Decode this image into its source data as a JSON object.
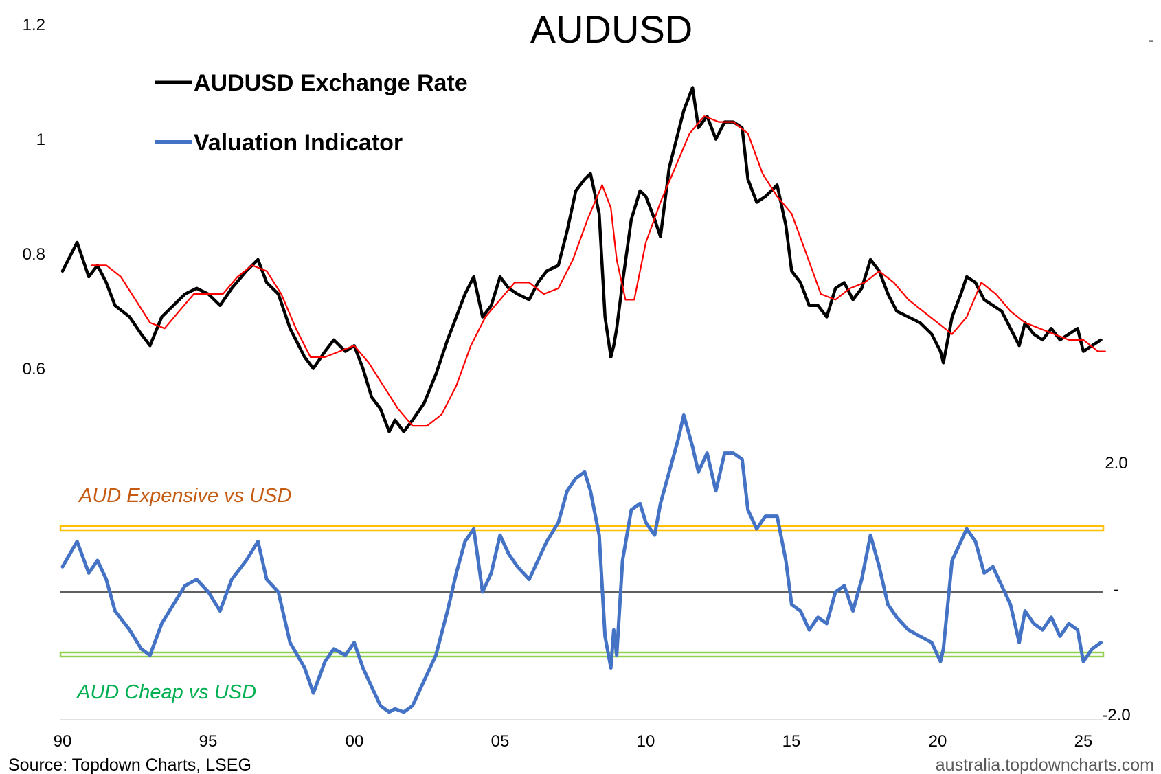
{
  "chart_data": {
    "type": "line",
    "title": "AUDUSD",
    "footer": {
      "source": "Source: Topdown Charts, LSEG",
      "website": "australia.topdowncharts.com"
    },
    "x_axis": {
      "range": [
        1990,
        2025.75
      ],
      "ticks": [
        {
          "value": 1990,
          "label": "90"
        },
        {
          "value": 1995,
          "label": "95"
        },
        {
          "value": 2000,
          "label": "00"
        },
        {
          "value": 2005,
          "label": "05"
        },
        {
          "value": 2010,
          "label": "10"
        },
        {
          "value": 2015,
          "label": "15"
        },
        {
          "value": 2020,
          "label": "20"
        },
        {
          "value": 2025,
          "label": "25"
        }
      ]
    },
    "left_axis": {
      "range": [
        0.43,
        1.2
      ],
      "ticks": [
        {
          "value": 1.2,
          "label": "1.2"
        },
        {
          "value": 1.0,
          "label": "1"
        },
        {
          "value": 0.8,
          "label": "0.8"
        },
        {
          "value": 0.6,
          "label": "0.6"
        }
      ]
    },
    "right_axis": {
      "range": [
        -2.0,
        2.0
      ],
      "ticks": [
        {
          "value": 2.0,
          "label": "2.0"
        },
        {
          "value": 0.0,
          "label": "-"
        },
        {
          "value": -2.0,
          "label": "-2.0"
        }
      ]
    },
    "legend": [
      {
        "label": "AUDUSD Exchange Rate",
        "color": "#000000"
      },
      {
        "label": "Valuation Indicator",
        "color": "#4472C4"
      }
    ],
    "thresholds": [
      {
        "label": "AUD Expensive vs USD",
        "value": 1.0,
        "color": "#FFC000",
        "label_color": "#C55A11"
      },
      {
        "label": "AUD Cheap vs USD",
        "value": -1.0,
        "color": "#92D050",
        "label_color": "#00B050"
      }
    ],
    "series": [
      {
        "name": "AUDUSD Exchange Rate",
        "axis": "left",
        "color": "#000000",
        "x": [
          1990.0,
          1990.5,
          1990.9,
          1991.2,
          1991.5,
          1991.8,
          1992.3,
          1992.7,
          1993.0,
          1993.4,
          1993.8,
          1994.2,
          1994.6,
          1995.0,
          1995.4,
          1995.8,
          1996.3,
          1996.7,
          1997.0,
          1997.4,
          1997.8,
          1998.3,
          1998.6,
          1999.0,
          1999.3,
          1999.7,
          2000.0,
          2000.3,
          2000.6,
          2000.9,
          2001.2,
          2001.4,
          2001.7,
          2002.0,
          2002.4,
          2002.8,
          2003.2,
          2003.5,
          2003.8,
          2004.1,
          2004.4,
          2004.7,
          2005.0,
          2005.3,
          2005.6,
          2006.0,
          2006.3,
          2006.6,
          2007.0,
          2007.3,
          2007.6,
          2007.9,
          2008.1,
          2008.4,
          2008.6,
          2008.8,
          2008.9,
          2009.0,
          2009.2,
          2009.5,
          2009.8,
          2010.0,
          2010.3,
          2010.5,
          2010.8,
          2011.1,
          2011.3,
          2011.6,
          2011.8,
          2012.1,
          2012.4,
          2012.7,
          2013.0,
          2013.3,
          2013.5,
          2013.8,
          2014.1,
          2014.5,
          2014.8,
          2015.0,
          2015.3,
          2015.6,
          2015.9,
          2016.2,
          2016.5,
          2016.8,
          2017.1,
          2017.4,
          2017.7,
          2018.0,
          2018.3,
          2018.6,
          2019.0,
          2019.4,
          2019.8,
          2020.1,
          2020.2,
          2020.5,
          2020.8,
          2021.0,
          2021.3,
          2021.6,
          2021.9,
          2022.2,
          2022.5,
          2022.8,
          2023.0,
          2023.3,
          2023.6,
          2023.9,
          2024.2,
          2024.5,
          2024.8,
          2025.0,
          2025.3,
          2025.6
        ],
        "y": [
          0.78,
          0.83,
          0.77,
          0.79,
          0.76,
          0.72,
          0.7,
          0.67,
          0.65,
          0.7,
          0.72,
          0.74,
          0.75,
          0.74,
          0.72,
          0.75,
          0.78,
          0.8,
          0.76,
          0.74,
          0.68,
          0.63,
          0.61,
          0.64,
          0.66,
          0.64,
          0.65,
          0.61,
          0.56,
          0.54,
          0.5,
          0.52,
          0.5,
          0.52,
          0.55,
          0.6,
          0.66,
          0.7,
          0.74,
          0.77,
          0.7,
          0.72,
          0.77,
          0.75,
          0.74,
          0.73,
          0.76,
          0.78,
          0.79,
          0.85,
          0.92,
          0.94,
          0.95,
          0.88,
          0.7,
          0.63,
          0.65,
          0.68,
          0.76,
          0.87,
          0.92,
          0.91,
          0.87,
          0.84,
          0.96,
          1.02,
          1.06,
          1.1,
          1.03,
          1.05,
          1.01,
          1.04,
          1.04,
          1.03,
          0.94,
          0.9,
          0.91,
          0.93,
          0.86,
          0.78,
          0.76,
          0.72,
          0.72,
          0.7,
          0.75,
          0.76,
          0.73,
          0.75,
          0.8,
          0.78,
          0.74,
          0.71,
          0.7,
          0.69,
          0.67,
          0.64,
          0.62,
          0.7,
          0.74,
          0.77,
          0.76,
          0.73,
          0.72,
          0.71,
          0.68,
          0.65,
          0.69,
          0.67,
          0.66,
          0.68,
          0.66,
          0.67,
          0.68,
          0.64,
          0.65,
          0.66
        ]
      },
      {
        "name": "",
        "axis": "left",
        "color": "#FF0000",
        "x": [
          1991.0,
          1991.5,
          1992.0,
          1992.5,
          1993.0,
          1993.5,
          1994.0,
          1994.5,
          1995.0,
          1995.5,
          1996.0,
          1996.5,
          1997.0,
          1997.5,
          1998.0,
          1998.5,
          1999.0,
          1999.5,
          2000.0,
          2000.5,
          2001.0,
          2001.5,
          2002.0,
          2002.5,
          2003.0,
          2003.5,
          2004.0,
          2004.5,
          2005.0,
          2005.5,
          2006.0,
          2006.5,
          2007.0,
          2007.5,
          2008.0,
          2008.5,
          2008.8,
          2009.0,
          2009.3,
          2009.6,
          2010.0,
          2010.5,
          2011.0,
          2011.5,
          2012.0,
          2012.5,
          2013.0,
          2013.5,
          2014.0,
          2014.5,
          2015.0,
          2015.5,
          2016.0,
          2016.5,
          2017.0,
          2017.5,
          2018.0,
          2018.5,
          2019.0,
          2019.5,
          2020.0,
          2020.5,
          2021.0,
          2021.5,
          2022.0,
          2022.5,
          2023.0,
          2023.5,
          2024.0,
          2024.5,
          2025.0,
          2025.5,
          2025.75
        ],
        "y": [
          0.79,
          0.79,
          0.77,
          0.73,
          0.69,
          0.68,
          0.71,
          0.74,
          0.74,
          0.74,
          0.77,
          0.79,
          0.78,
          0.74,
          0.68,
          0.63,
          0.63,
          0.64,
          0.65,
          0.62,
          0.58,
          0.54,
          0.51,
          0.51,
          0.53,
          0.58,
          0.65,
          0.7,
          0.73,
          0.76,
          0.76,
          0.74,
          0.75,
          0.8,
          0.87,
          0.93,
          0.89,
          0.8,
          0.73,
          0.73,
          0.83,
          0.9,
          0.96,
          1.02,
          1.05,
          1.04,
          1.04,
          1.02,
          0.95,
          0.91,
          0.88,
          0.81,
          0.74,
          0.73,
          0.75,
          0.76,
          0.78,
          0.76,
          0.73,
          0.71,
          0.69,
          0.67,
          0.7,
          0.76,
          0.74,
          0.71,
          0.69,
          0.68,
          0.67,
          0.66,
          0.66,
          0.64,
          0.64
        ]
      },
      {
        "name": "Valuation Indicator",
        "axis": "right",
        "color": "#4472C4",
        "x": [
          1990.0,
          1990.5,
          1990.9,
          1991.2,
          1991.5,
          1991.8,
          1992.3,
          1992.7,
          1993.0,
          1993.4,
          1993.8,
          1994.2,
          1994.6,
          1995.0,
          1995.4,
          1995.8,
          1996.3,
          1996.7,
          1997.0,
          1997.4,
          1997.8,
          1998.3,
          1998.6,
          1999.0,
          1999.3,
          1999.7,
          2000.0,
          2000.3,
          2000.6,
          2000.9,
          2001.2,
          2001.4,
          2001.7,
          2002.0,
          2002.4,
          2002.8,
          2003.2,
          2003.5,
          2003.8,
          2004.1,
          2004.4,
          2004.7,
          2005.0,
          2005.3,
          2005.6,
          2006.0,
          2006.3,
          2006.6,
          2007.0,
          2007.3,
          2007.6,
          2007.9,
          2008.1,
          2008.4,
          2008.6,
          2008.8,
          2008.9,
          2009.0,
          2009.2,
          2009.5,
          2009.8,
          2010.0,
          2010.3,
          2010.5,
          2010.8,
          2011.1,
          2011.3,
          2011.6,
          2011.8,
          2012.1,
          2012.4,
          2012.7,
          2013.0,
          2013.3,
          2013.5,
          2013.8,
          2014.1,
          2014.5,
          2014.8,
          2015.0,
          2015.3,
          2015.6,
          2015.9,
          2016.2,
          2016.5,
          2016.8,
          2017.1,
          2017.4,
          2017.7,
          2018.0,
          2018.3,
          2018.6,
          2019.0,
          2019.4,
          2019.8,
          2020.1,
          2020.2,
          2020.5,
          2020.8,
          2021.0,
          2021.3,
          2021.6,
          2021.9,
          2022.2,
          2022.5,
          2022.8,
          2023.0,
          2023.3,
          2023.6,
          2023.9,
          2024.2,
          2024.5,
          2024.8,
          2025.0,
          2025.3,
          2025.6
        ],
        "y": [
          0.4,
          0.8,
          0.3,
          0.5,
          0.2,
          -0.3,
          -0.6,
          -0.9,
          -1.0,
          -0.5,
          -0.2,
          0.1,
          0.2,
          0.0,
          -0.3,
          0.2,
          0.5,
          0.8,
          0.2,
          0.0,
          -0.8,
          -1.2,
          -1.6,
          -1.1,
          -0.9,
          -1.0,
          -0.8,
          -1.2,
          -1.5,
          -1.8,
          -1.9,
          -1.85,
          -1.9,
          -1.8,
          -1.4,
          -1.0,
          -0.3,
          0.3,
          0.8,
          1.0,
          0.0,
          0.3,
          0.9,
          0.6,
          0.4,
          0.2,
          0.5,
          0.8,
          1.1,
          1.6,
          1.8,
          1.9,
          1.6,
          0.9,
          -0.7,
          -1.2,
          -0.6,
          -1.0,
          0.5,
          1.3,
          1.4,
          1.1,
          0.9,
          1.4,
          1.9,
          2.4,
          2.8,
          2.3,
          1.9,
          2.2,
          1.6,
          2.2,
          2.2,
          2.1,
          1.3,
          1.0,
          1.2,
          1.2,
          0.5,
          -0.2,
          -0.3,
          -0.6,
          -0.4,
          -0.5,
          0.0,
          0.1,
          -0.3,
          0.2,
          0.9,
          0.4,
          -0.2,
          -0.4,
          -0.6,
          -0.7,
          -0.8,
          -1.1,
          -0.9,
          0.5,
          0.8,
          1.0,
          0.8,
          0.3,
          0.4,
          0.1,
          -0.2,
          -0.8,
          -0.3,
          -0.5,
          -0.6,
          -0.4,
          -0.7,
          -0.5,
          -0.6,
          -1.1,
          -0.9,
          -0.8
        ]
      }
    ]
  }
}
